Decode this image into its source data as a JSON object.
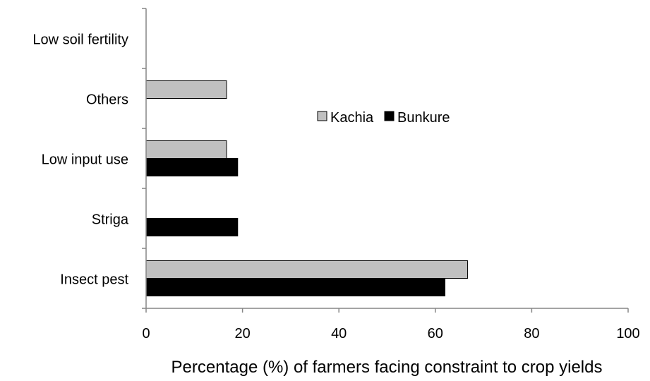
{
  "chart_data": {
    "type": "bar",
    "orientation": "horizontal",
    "categories": [
      "Insect pest",
      "Striga",
      "Low input use",
      "Others",
      "Low soil fertility"
    ],
    "series": [
      {
        "name": "Kachia",
        "values": [
          66.7,
          0,
          16.7,
          16.7,
          0
        ],
        "color": "#c0c0c0"
      },
      {
        "name": "Bunkure",
        "values": [
          62.0,
          19.0,
          19.0,
          0,
          0
        ],
        "color": "#000000"
      }
    ],
    "xlabel": "Percentage (%) of farmers facing constraint to crop yields",
    "ylabel": "",
    "xlim": [
      0,
      100
    ],
    "xticks": [
      0,
      20,
      40,
      60,
      80,
      100
    ],
    "legend": {
      "position": "center-right"
    },
    "grid": false
  }
}
